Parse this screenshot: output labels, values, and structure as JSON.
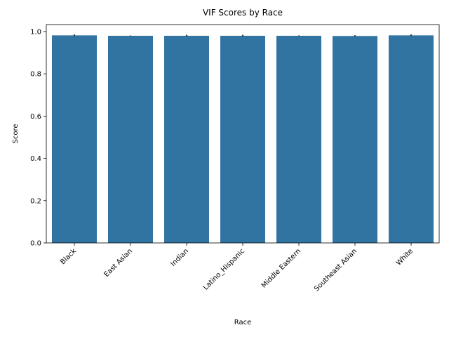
{
  "chart_data": {
    "type": "bar",
    "title": "VIF Scores by Race",
    "xlabel": "Race",
    "ylabel": "Score",
    "categories": [
      "Black",
      "East Asian",
      "Indian",
      "Latino_Hispanic",
      "Middle Eastern",
      "Southeast Asian",
      "White"
    ],
    "values": [
      0.982,
      0.98,
      0.98,
      0.98,
      0.98,
      0.979,
      0.982
    ],
    "error_low": [
      0.979,
      0.98,
      0.978,
      0.978,
      0.98,
      0.977,
      0.979
    ],
    "error_high": [
      0.985,
      0.98,
      0.983,
      0.983,
      0.98,
      0.981,
      0.985
    ],
    "ylim": [
      0,
      1.033
    ],
    "yticks": [
      "0.0",
      "0.2",
      "0.4",
      "0.6",
      "0.8",
      "1.0"
    ],
    "ytick_values": [
      0,
      0.2,
      0.4,
      0.6,
      0.8,
      1.0
    ],
    "grid": false,
    "bar_color": "#3274a1",
    "error_color": "#424242"
  }
}
